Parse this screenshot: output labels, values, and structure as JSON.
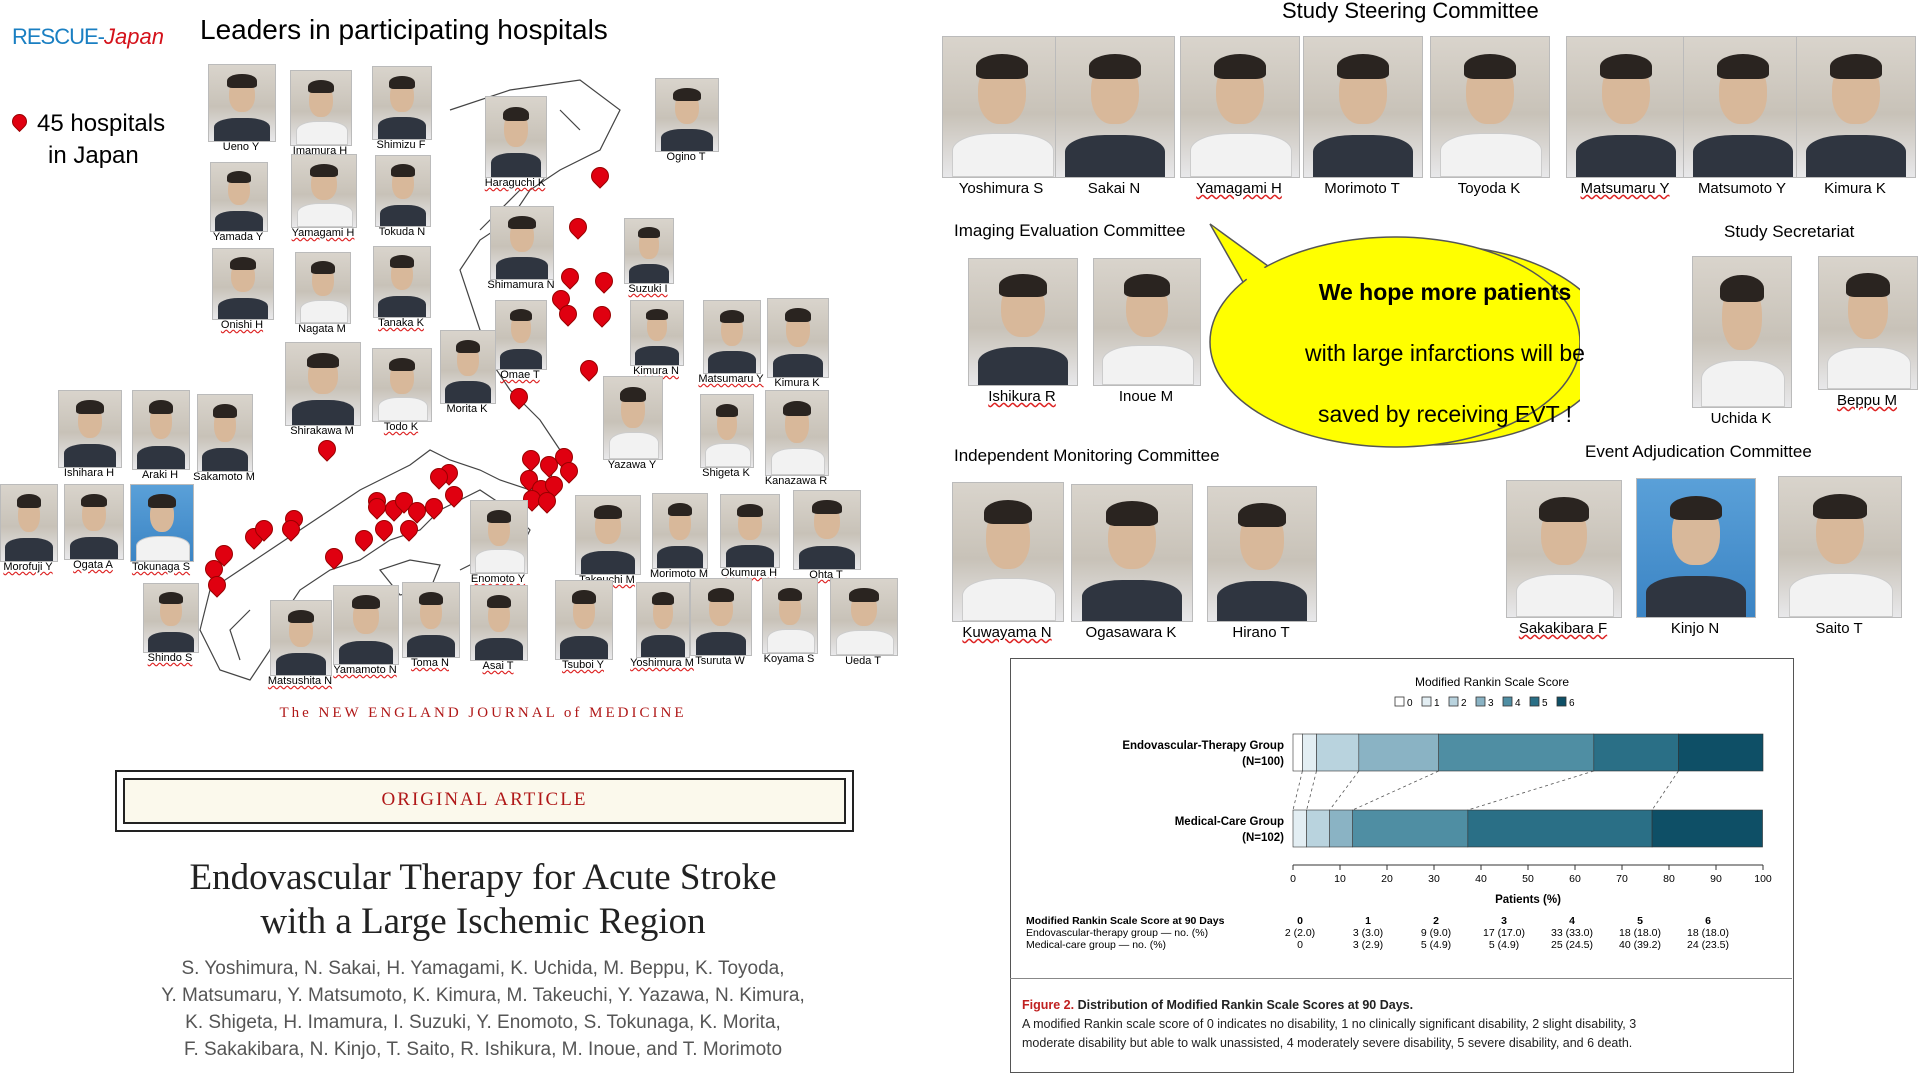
{
  "logo": {
    "part1": "RESCUE-",
    "part2": "Japan"
  },
  "left_title": "Leaders in participating hospitals",
  "hospitals_note": {
    "line1": "45 hospitals",
    "line2": "in Japan"
  },
  "leaders": [
    "Ueno Y",
    "Imamura H",
    "Shimizu F",
    "Haraguchi K",
    "Ogino T",
    "Yamada Y",
    "Yamagami H",
    "Tokuda N",
    "Onishi H",
    "Nagata M",
    "Tanaka K",
    "Shimamura N",
    "Suzuki I",
    "Kimura N",
    "Matsumaru Y",
    "Kimura K",
    "Shirakawa M",
    "Todo K",
    "Morita K",
    "Omae T",
    "Ishihara H",
    "Araki H",
    "Sakamoto M",
    "Yazawa Y",
    "Shigeta K",
    "Kanazawa R",
    "Morofuji Y",
    "Ogata A",
    "Tokunaga S",
    "Takeuchi M",
    "Morimoto M",
    "Okumura H",
    "Ohta T",
    "Enomoto Y",
    "Shindo S",
    "Tsuboi Y",
    "Yoshimura M",
    "Tsuruta W",
    "Koyama S",
    "Ueda T",
    "Matsushita N",
    "Yamamoto N",
    "Toma N",
    "Asai T"
  ],
  "journal": {
    "masthead": "The NEW ENGLAND JOURNAL of MEDICINE",
    "banner": "ORIGINAL ARTICLE",
    "title_line1": "Endovascular Therapy for Acute Stroke",
    "title_line2": "with a Large Ischemic Region",
    "authors_line1": "S. Yoshimura, N. Sakai, H. Yamagami, K. Uchida, M. Beppu, K. Toyoda,",
    "authors_line2": "Y. Matsumaru, Y. Matsumoto, K. Kimura, M. Takeuchi, Y. Yazawa, N. Kimura,",
    "authors_line3": "K. Shigeta, H. Imamura, I. Suzuki, Y. Enomoto, S. Tokunaga, K. Morita,",
    "authors_line4": "F. Sakakibara, N. Kinjo, T. Saito, R. Ishikura, M. Inoue, and T. Morimoto"
  },
  "committees": {
    "steering": {
      "title": "Study Steering Committee",
      "members": [
        "Yoshimura S",
        "Sakai N",
        "Yamagami H",
        "Morimoto T",
        "Toyoda K",
        "Matsumaru Y",
        "Matsumoto Y",
        "Kimura K"
      ]
    },
    "imaging": {
      "title": "Imaging Evaluation Committee",
      "members": [
        "Ishikura R",
        "Inoue M"
      ]
    },
    "secretariat": {
      "title": "Study Secretariat",
      "members": [
        "Uchida K",
        "Beppu M"
      ]
    },
    "monitoring": {
      "title": "Independent Monitoring Committee",
      "members": [
        "Kuwayama N",
        "Ogasawara K",
        "Hirano T"
      ]
    },
    "adjudication": {
      "title": "Event Adjudication Committee",
      "members": [
        "Sakakibara F",
        "Kinjo N",
        "Saito T"
      ]
    }
  },
  "speech_bubble": {
    "line1": "We hope more patients",
    "line2": "with large infarctions will be",
    "line3": "saved by receiving EVT !"
  },
  "chart_data": {
    "type": "bar",
    "orientation": "horizontal-stacked",
    "title": "Modified Rankin Scale Score",
    "legend": [
      "0",
      "1",
      "2",
      "3",
      "4",
      "5",
      "6"
    ],
    "colors": [
      "#ffffff",
      "#e3eef3",
      "#b9d3de",
      "#8ab3c4",
      "#4f8ea3",
      "#2a6f86",
      "#0e4f66"
    ],
    "xlabel": "Patients (%)",
    "xlim": [
      0,
      100
    ],
    "xticks": [
      0,
      10,
      20,
      30,
      40,
      50,
      60,
      70,
      80,
      90,
      100
    ],
    "series": [
      {
        "name": "Endovascular-Therapy Group",
        "n": "(N=100)",
        "values": [
          2.0,
          3.0,
          9.0,
          17.0,
          33.0,
          18.0,
          18.0
        ]
      },
      {
        "name": "Medical-Care Group",
        "n": "(N=102)",
        "values": [
          0,
          2.9,
          4.9,
          4.9,
          24.5,
          39.2,
          23.5
        ]
      }
    ],
    "table": {
      "header": "Modified Rankin Scale Score at 90 Days",
      "columns": [
        "0",
        "1",
        "2",
        "3",
        "4",
        "5",
        "6"
      ],
      "rows": [
        {
          "label": "Endovascular-therapy group — no. (%)",
          "cells": [
            "2 (2.0)",
            "3 (3.0)",
            "9 (9.0)",
            "17 (17.0)",
            "33 (33.0)",
            "18 (18.0)",
            "18 (18.0)"
          ]
        },
        {
          "label": "Medical-care group — no. (%)",
          "cells": [
            "0",
            "3 (2.9)",
            "5 (4.9)",
            "5 (4.9)",
            "25 (24.5)",
            "40 (39.2)",
            "24 (23.5)"
          ]
        }
      ]
    },
    "caption_label": "Figure 2.",
    "caption_title": "Distribution of Modified Rankin Scale Scores at 90 Days.",
    "caption_text_1": "A modified Rankin scale score of 0 indicates no disability, 1 no clinically significant disability, 2 slight disability, 3",
    "caption_text_2": "moderate disability but able to walk unassisted, 4 moderately severe disability, 5 severe disability, and 6 death."
  }
}
